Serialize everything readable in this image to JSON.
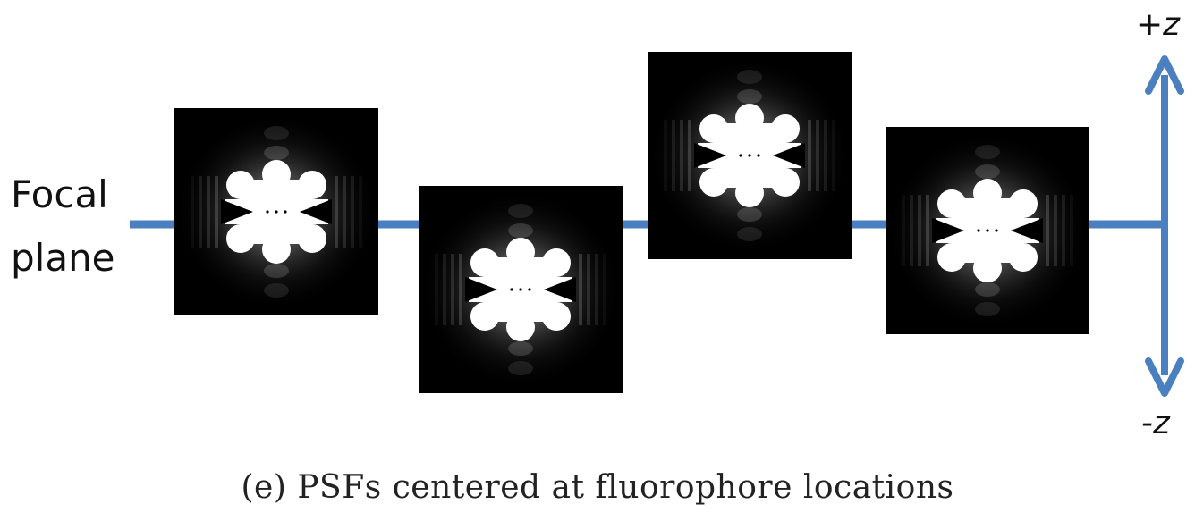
{
  "labels": {
    "focal_line1": "Focal",
    "focal_line2": "plane",
    "plus_z": "+z",
    "minus_z": "-z"
  },
  "caption": "(e) PSFs centered at fluorophore locations",
  "colors": {
    "focal_line": "#4a7fc0",
    "axis_arrow": "#4a7fc0",
    "psf_background": "#000000",
    "psf_core": "#ffffff"
  },
  "psfs": [
    {
      "name": "psf-1",
      "z_offset": 0.25
    },
    {
      "name": "psf-2",
      "z_offset": -1.2
    },
    {
      "name": "psf-3",
      "z_offset": 1.2
    },
    {
      "name": "psf-4",
      "z_offset": -0.1
    }
  ]
}
